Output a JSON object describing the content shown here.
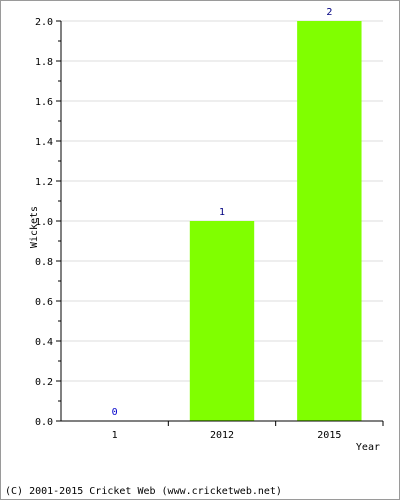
{
  "chart_data": {
    "type": "bar",
    "categories": [
      "1",
      "2012",
      "2015"
    ],
    "values": [
      0,
      1,
      2
    ],
    "data_labels": [
      "0",
      "1",
      "2"
    ],
    "xlabel": "Year",
    "ylabel": "Wickets",
    "ylim": [
      0,
      2.0
    ],
    "yticks": [
      "0.0",
      "0.2",
      "0.4",
      "0.6",
      "0.8",
      "1.0",
      "1.2",
      "1.4",
      "1.6",
      "1.8",
      "2.0"
    ],
    "grid": true,
    "colors": {
      "bar": "#80ff00",
      "grid": "#dddddd",
      "data_label": "#000080",
      "zero_label": "#0000cc"
    }
  },
  "footer": {
    "copyright": "(C) 2001-2015 Cricket Web (www.cricketweb.net)"
  }
}
